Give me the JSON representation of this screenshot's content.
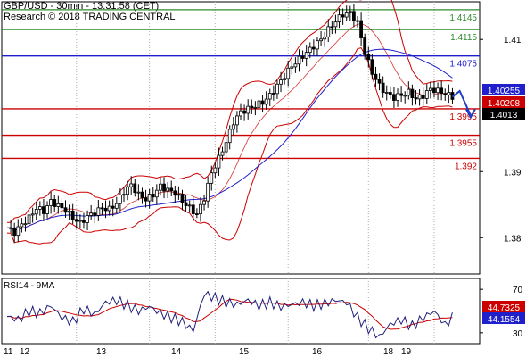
{
  "header": {
    "title": "GBP/USD - 30min - 13:31:58 (CET)",
    "credit": "Research © 2018 TRADING CENTRAL"
  },
  "colors": {
    "candle": "#000000",
    "bollinger": "#cc0000",
    "moving_average": "#1f1fcc",
    "support": "#cc0000",
    "resistance_green": "#2e8b2e",
    "resistance_blue": "#1f1fcc",
    "rsi": "#1f1f7a",
    "rsi_ma": "#cc0000"
  },
  "chart_data": [
    {
      "type": "line",
      "name_panel": "price",
      "x_labels": [
        "11",
        "12",
        "13",
        "14",
        "15",
        "16",
        "18",
        "19"
      ],
      "y_ticks": [
        "1.41",
        "1.39",
        "1.38"
      ],
      "ylim": [
        1.3745,
        1.4157
      ],
      "levels": [
        {
          "label": "1.4145",
          "value": 1.4145,
          "color": "#2e8b2e"
        },
        {
          "label": "1.4115",
          "value": 1.4115,
          "color": "#2e8b2e"
        },
        {
          "label": "1.4075",
          "value": 1.4075,
          "color": "#1f1fcc"
        },
        {
          "label": "1.3995",
          "value": 1.3995,
          "color": "#cc0000"
        },
        {
          "label": "1.3955",
          "value": 1.3955,
          "color": "#cc0000"
        },
        {
          "label": "1.392",
          "value": 1.392,
          "color": "#cc0000"
        }
      ],
      "price_tags": [
        {
          "label": "1.40255",
          "value": 1.40255,
          "bg": "#1f1fcc"
        },
        {
          "label": "1.40208",
          "value": 1.40208,
          "bg": "#cc0000"
        },
        {
          "label": "1.4013",
          "value": 1.4013,
          "bg": "#000000"
        }
      ],
      "close_series": [
        [
          0,
          1.3815
        ],
        [
          2,
          1.3808
        ],
        [
          4,
          1.382
        ],
        [
          6,
          1.383
        ],
        [
          8,
          1.3845
        ],
        [
          10,
          1.384
        ],
        [
          12,
          1.3855
        ],
        [
          14,
          1.3848
        ],
        [
          16,
          1.3842
        ],
        [
          18,
          1.383
        ],
        [
          20,
          1.3822
        ],
        [
          22,
          1.3832
        ],
        [
          24,
          1.3838
        ],
        [
          26,
          1.3845
        ],
        [
          28,
          1.3843
        ],
        [
          30,
          1.3852
        ],
        [
          32,
          1.387
        ],
        [
          34,
          1.388
        ],
        [
          36,
          1.3865
        ],
        [
          38,
          1.3858
        ],
        [
          40,
          1.3865
        ],
        [
          42,
          1.3878
        ],
        [
          44,
          1.3872
        ],
        [
          46,
          1.3868
        ],
        [
          48,
          1.3855
        ],
        [
          50,
          1.3845
        ],
        [
          52,
          1.3835
        ],
        [
          54,
          1.386
        ],
        [
          56,
          1.3898
        ],
        [
          58,
          1.392
        ],
        [
          60,
          1.3945
        ],
        [
          62,
          1.3975
        ],
        [
          64,
          1.399
        ],
        [
          66,
          1.3995
        ],
        [
          68,
          1.4
        ],
        [
          70,
          1.4005
        ],
        [
          72,
          1.4015
        ],
        [
          74,
          1.403
        ],
        [
          76,
          1.4045
        ],
        [
          78,
          1.406
        ],
        [
          80,
          1.407
        ],
        [
          82,
          1.408
        ],
        [
          84,
          1.409
        ],
        [
          86,
          1.41
        ],
        [
          88,
          1.4115
        ],
        [
          90,
          1.4128
        ],
        [
          92,
          1.4138
        ],
        [
          94,
          1.414
        ],
        [
          96,
          1.4125
        ],
        [
          98,
          1.408
        ],
        [
          100,
          1.405
        ],
        [
          102,
          1.403
        ],
        [
          104,
          1.4018
        ],
        [
          106,
          1.4012
        ],
        [
          108,
          1.4016
        ],
        [
          110,
          1.402
        ],
        [
          112,
          1.401
        ],
        [
          114,
          1.4015
        ],
        [
          116,
          1.4025
        ],
        [
          118,
          1.4022
        ],
        [
          120,
          1.4018
        ],
        [
          122,
          1.4013
        ]
      ],
      "forecast": [
        [
          122,
          1.4013
        ],
        [
          124,
          1.4022
        ],
        [
          127,
          1.3985
        ]
      ]
    },
    {
      "type": "line",
      "name_panel": "rsi",
      "title": "RSI14 - 9MA",
      "y_ticks": [
        "70",
        "30"
      ],
      "ylim": [
        20,
        80
      ],
      "value_tags": [
        {
          "label": "44.7325",
          "value": 44.7325,
          "bg": "#cc0000"
        },
        {
          "label": "44.1554",
          "value": 44.1554,
          "bg": "#1f1fcc"
        }
      ],
      "rsi_series": [
        [
          0,
          45
        ],
        [
          3,
          42
        ],
        [
          6,
          50
        ],
        [
          9,
          48
        ],
        [
          12,
          55
        ],
        [
          15,
          44
        ],
        [
          18,
          40
        ],
        [
          21,
          52
        ],
        [
          24,
          47
        ],
        [
          27,
          58
        ],
        [
          30,
          60
        ],
        [
          33,
          55
        ],
        [
          36,
          50
        ],
        [
          39,
          54
        ],
        [
          42,
          48
        ],
        [
          45,
          44
        ],
        [
          48,
          40
        ],
        [
          51,
          32
        ],
        [
          54,
          66
        ],
        [
          57,
          62
        ],
        [
          60,
          58
        ],
        [
          63,
          56
        ],
        [
          66,
          60
        ],
        [
          69,
          55
        ],
        [
          72,
          58
        ],
        [
          75,
          54
        ],
        [
          78,
          56
        ],
        [
          81,
          58
        ],
        [
          84,
          55
        ],
        [
          87,
          57
        ],
        [
          90,
          60
        ],
        [
          93,
          58
        ],
        [
          96,
          44
        ],
        [
          99,
          34
        ],
        [
          102,
          26
        ],
        [
          105,
          38
        ],
        [
          108,
          42
        ],
        [
          111,
          36
        ],
        [
          114,
          44
        ],
        [
          117,
          50
        ],
        [
          120,
          37
        ],
        [
          122,
          44
        ]
      ]
    }
  ]
}
